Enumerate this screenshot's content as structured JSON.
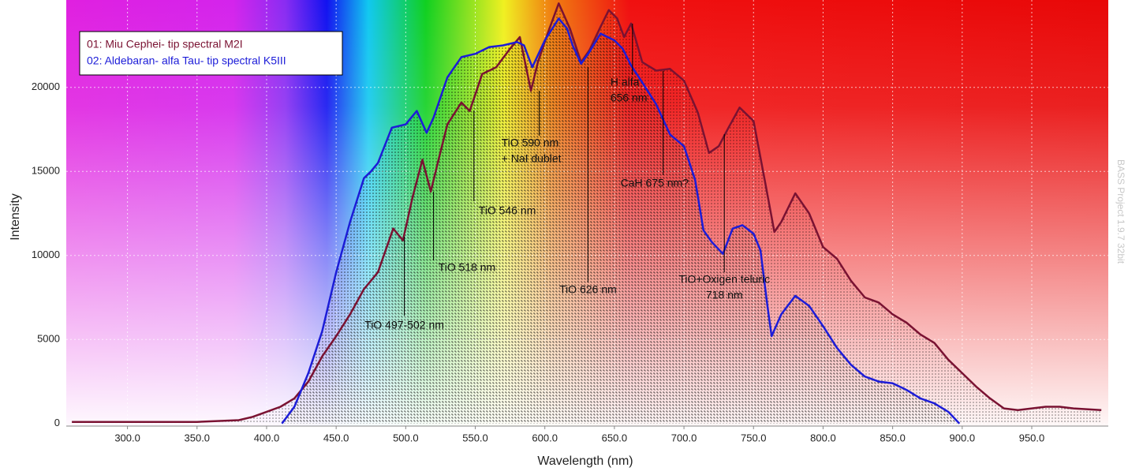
{
  "chart_data": {
    "type": "line",
    "x_label": "Wavelength (nm)",
    "y_label": "Intensity",
    "xlim": [
      256,
      1005
    ],
    "ylim": [
      -150,
      25200
    ],
    "xticks": [
      {
        "value": 300,
        "label": "300.0"
      },
      {
        "value": 350,
        "label": "350.0"
      },
      {
        "value": 400,
        "label": "400.0"
      },
      {
        "value": 450,
        "label": "450.0"
      },
      {
        "value": 500,
        "label": "500.0"
      },
      {
        "value": 550,
        "label": "550.0"
      },
      {
        "value": 600,
        "label": "600.0"
      },
      {
        "value": 650,
        "label": "650.0"
      },
      {
        "value": 700,
        "label": "700.0"
      },
      {
        "value": 750,
        "label": "750.0"
      },
      {
        "value": 800,
        "label": "800.0"
      },
      {
        "value": 850,
        "label": "850.0"
      },
      {
        "value": 900,
        "label": "900.0"
      },
      {
        "value": 950,
        "label": "950.0"
      }
    ],
    "yticks": [
      0,
      5000,
      10000,
      15000,
      20000
    ],
    "grid": true,
    "legend": "upper left",
    "watermark": "BASS Project 1.9.7 32bit",
    "series": [
      {
        "name": "01: Miu Cephei- tip spectral M2I",
        "color": "#7a1232",
        "x": [
          260,
          300,
          350,
          380,
          390,
          400,
          410,
          420,
          430,
          440,
          450,
          460,
          470,
          480,
          491,
          498,
          505,
          512,
          518,
          523,
          530,
          540,
          546,
          555,
          565,
          575,
          582,
          590,
          595,
          602,
          610,
          618,
          626,
          632,
          640,
          646,
          652,
          657,
          662,
          670,
          680,
          690,
          700,
          710,
          718,
          725,
          732,
          740,
          750,
          758,
          765,
          770,
          780,
          790,
          800,
          810,
          820,
          830,
          840,
          850,
          860,
          870,
          880,
          890,
          900,
          910,
          920,
          930,
          940,
          950,
          960,
          970,
          980,
          1000
        ],
        "values": [
          100,
          100,
          100,
          200,
          400,
          700,
          1000,
          1500,
          2500,
          4000,
          5200,
          6500,
          8000,
          9000,
          11600,
          10900,
          13500,
          15700,
          13800,
          15500,
          17800,
          19100,
          18600,
          20800,
          21200,
          22300,
          23000,
          19800,
          21500,
          23200,
          25000,
          23500,
          21500,
          22200,
          23600,
          24600,
          24100,
          23000,
          23800,
          21500,
          21000,
          21100,
          20400,
          18500,
          16100,
          16500,
          17600,
          18800,
          18000,
          14500,
          11400,
          12000,
          13700,
          12500,
          10500,
          9800,
          8500,
          7500,
          7200,
          6500,
          6000,
          5300,
          4800,
          3800,
          3000,
          2200,
          1500,
          900,
          800,
          900,
          1000,
          1000,
          900,
          800
        ]
      },
      {
        "name": "02: Aldebaran- alfa Tau- tip spectral K5III",
        "color": "#1c1cd8",
        "x": [
          411,
          420,
          430,
          440,
          450,
          460,
          470,
          475,
          480,
          490,
          500,
          508,
          515,
          520,
          530,
          540,
          550,
          560,
          570,
          580,
          585,
          591,
          600,
          610,
          616,
          620,
          626,
          632,
          640,
          650,
          656,
          662,
          670,
          680,
          690,
          700,
          708,
          714,
          720,
          728,
          735,
          742,
          750,
          755,
          760,
          763,
          770,
          780,
          790,
          800,
          810,
          820,
          830,
          840,
          850,
          860,
          870,
          880,
          890,
          898
        ],
        "values": [
          0,
          1000,
          3000,
          5500,
          9000,
          12000,
          14600,
          15000,
          15500,
          17600,
          17800,
          18600,
          17300,
          18200,
          20600,
          21800,
          22000,
          22400,
          22500,
          22700,
          22500,
          21200,
          22800,
          24100,
          23500,
          22500,
          21400,
          22100,
          23200,
          22800,
          22300,
          21300,
          20300,
          19000,
          17200,
          16500,
          14500,
          11500,
          10800,
          10100,
          11600,
          11800,
          11300,
          10300,
          7000,
          5200,
          6500,
          7600,
          7000,
          5800,
          4500,
          3500,
          2800,
          2500,
          2400,
          2000,
          1500,
          1200,
          700,
          0
        ]
      }
    ],
    "annotations": [
      {
        "text": [
          "TiO 497-502 nm"
        ],
        "x": 499
      },
      {
        "text": [
          "TiO 518 nm"
        ],
        "x": 520
      },
      {
        "text": [
          "TiO 546 nm"
        ],
        "x": 549
      },
      {
        "text": [
          "TiO 590 nm",
          "+ NaI dublet"
        ],
        "x": 596
      },
      {
        "text": [
          "TiO 626 nm"
        ],
        "x": 631
      },
      {
        "text": [
          "H alfa",
          "656 nm"
        ],
        "x": 663
      },
      {
        "text": [
          "CaH 675 nm?"
        ],
        "x": 685
      },
      {
        "text": [
          "TiO+Oxigen teluric",
          "718 nm"
        ],
        "x": 729
      }
    ]
  }
}
